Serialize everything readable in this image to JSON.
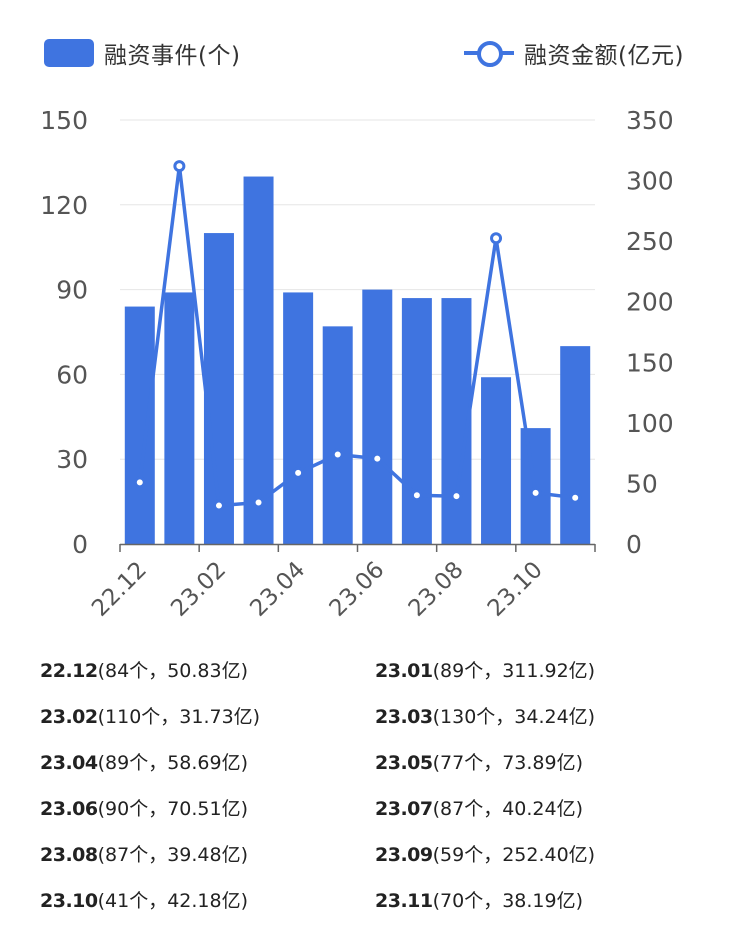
{
  "legend": {
    "bar_label": "融资事件(个)",
    "line_label": "融资金额(亿元)"
  },
  "colors": {
    "bar": "#3f74e0",
    "line": "#3f74e0",
    "axis_text": "#555555",
    "grid": "#e6e6e6"
  },
  "chart_data": {
    "type": "bar",
    "categories": [
      "22.12",
      "23.01",
      "23.02",
      "23.03",
      "23.04",
      "23.05",
      "23.06",
      "23.07",
      "23.08",
      "23.09",
      "23.10",
      "23.11"
    ],
    "series": [
      {
        "name": "融资事件(个)",
        "type": "bar",
        "axis": "left",
        "values": [
          84,
          89,
          110,
          130,
          89,
          77,
          90,
          87,
          87,
          59,
          41,
          70
        ]
      },
      {
        "name": "融资金额(亿元)",
        "type": "line",
        "axis": "right",
        "values": [
          50.83,
          311.92,
          31.73,
          34.24,
          58.69,
          73.89,
          70.51,
          40.24,
          39.48,
          252.4,
          42.18,
          38.19
        ]
      }
    ],
    "x_tick_labels": [
      "22.12",
      "23.02",
      "23.04",
      "23.06",
      "23.08",
      "23.10"
    ],
    "y_left": {
      "ticks": [
        0,
        30,
        60,
        90,
        120,
        150
      ],
      "range": [
        0,
        150
      ]
    },
    "y_right": {
      "ticks": [
        0,
        50,
        100,
        150,
        200,
        250,
        300,
        350
      ],
      "range": [
        0,
        350
      ]
    },
    "grid": true,
    "legend_position": "top"
  },
  "stats": [
    {
      "month": "22.12",
      "detail": "(84个，50.83亿)"
    },
    {
      "month": "23.01",
      "detail": "(89个，311.92亿)"
    },
    {
      "month": "23.02",
      "detail": "(110个，31.73亿)"
    },
    {
      "month": "23.03",
      "detail": "(130个，34.24亿)"
    },
    {
      "month": "23.04",
      "detail": "(89个，58.69亿)"
    },
    {
      "month": "23.05",
      "detail": "(77个，73.89亿)"
    },
    {
      "month": "23.06",
      "detail": "(90个，70.51亿)"
    },
    {
      "month": "23.07",
      "detail": "(87个，40.24亿)"
    },
    {
      "month": "23.08",
      "detail": "(87个，39.48亿)"
    },
    {
      "month": "23.09",
      "detail": "(59个，252.40亿)"
    },
    {
      "month": "23.10",
      "detail": "(41个，42.18亿)"
    },
    {
      "month": "23.11",
      "detail": "(70个，38.19亿)"
    }
  ]
}
